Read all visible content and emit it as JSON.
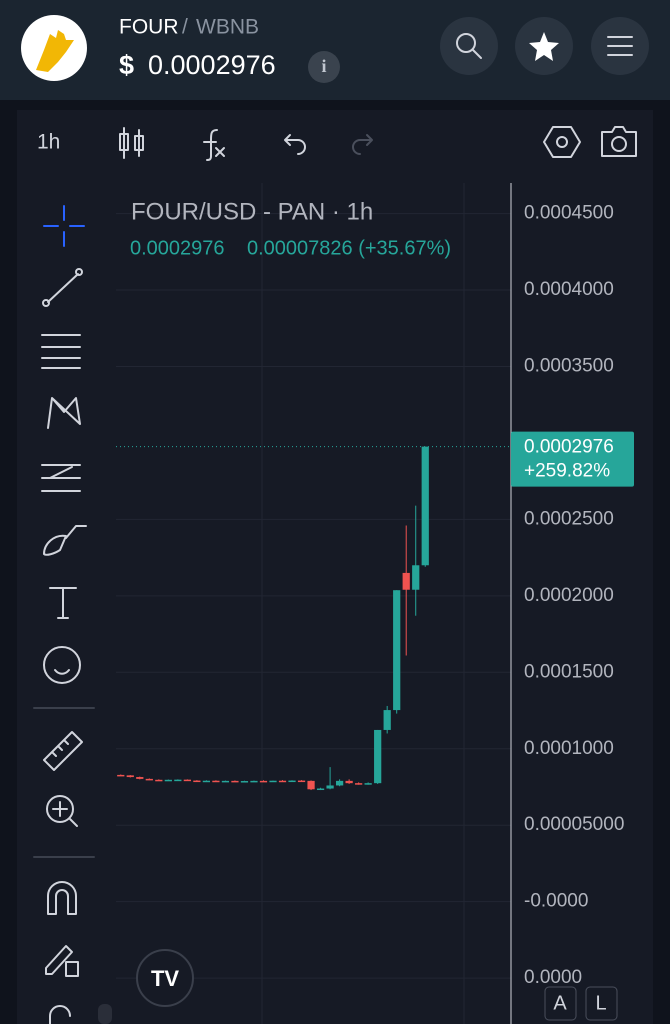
{
  "header": {
    "base": "FOUR",
    "separator": "/",
    "quote": "WBNB",
    "currency": "$",
    "price": "0.0002976"
  },
  "toolbar": {
    "interval": "1h"
  },
  "chart": {
    "type": "candlestick",
    "title": "FOUR/USD - PAN · 1h",
    "legend_price": "0.0002976",
    "legend_change": "0.00007826 (+35.67%)",
    "last_price_label": "0.0002976",
    "last_change_label": "+259.82%",
    "ylim": [
      -8e-05,
      0.00047
    ],
    "yticks": [
      {
        "value": 0.00045,
        "label": "0.0004500"
      },
      {
        "value": 0.0004,
        "label": "0.0004000"
      },
      {
        "value": 0.00035,
        "label": "0.0003500"
      },
      {
        "value": 0.00025,
        "label": "0.0002500"
      },
      {
        "value": 0.0002,
        "label": "0.0002000"
      },
      {
        "value": 0.00015,
        "label": "0.0001500"
      },
      {
        "value": 0.0001,
        "label": "0.0001000"
      },
      {
        "value": 5e-05,
        "label": "0.00005000"
      },
      {
        "value": 0,
        "label": "-0.0000"
      },
      {
        "value": -5e-05,
        "label": "0.0000"
      }
    ],
    "up_color": "#26a69a",
    "down_color": "#ef5350",
    "candles": [
      {
        "open": 8.29e-05,
        "high": 8.32e-05,
        "low": 8.22e-05,
        "close": 8.26e-05
      },
      {
        "open": 8.26e-05,
        "high": 8.28e-05,
        "low": 8.12e-05,
        "close": 8.15e-05
      },
      {
        "open": 8.15e-05,
        "high": 8.18e-05,
        "low": 8e-05,
        "close": 8.03e-05
      },
      {
        "open": 8.03e-05,
        "high": 8.06e-05,
        "low": 7.95e-05,
        "close": 7.97e-05
      },
      {
        "open": 7.97e-05,
        "high": 8e-05,
        "low": 7.92e-05,
        "close": 7.96e-05
      },
      {
        "open": 7.96e-05,
        "high": 7.99e-05,
        "low": 7.93e-05,
        "close": 7.97e-05
      },
      {
        "open": 7.97e-05,
        "high": 8e-05,
        "low": 7.94e-05,
        "close": 7.98e-05
      },
      {
        "open": 7.98e-05,
        "high": 8e-05,
        "low": 7.9e-05,
        "close": 7.92e-05
      },
      {
        "open": 7.92e-05,
        "high": 7.95e-05,
        "low": 7.89e-05,
        "close": 7.9e-05
      },
      {
        "open": 7.9e-05,
        "high": 7.94e-05,
        "low": 7.87e-05,
        "close": 7.91e-05
      },
      {
        "open": 7.91e-05,
        "high": 7.94e-05,
        "low": 7.88e-05,
        "close": 7.89e-05
      },
      {
        "open": 7.89e-05,
        "high": 7.92e-05,
        "low": 7.86e-05,
        "close": 7.9e-05
      },
      {
        "open": 7.9e-05,
        "high": 7.93e-05,
        "low": 7.87e-05,
        "close": 7.88e-05
      },
      {
        "open": 7.88e-05,
        "high": 7.91e-05,
        "low": 7.85e-05,
        "close": 7.89e-05
      },
      {
        "open": 7.89e-05,
        "high": 7.92e-05,
        "low": 7.86e-05,
        "close": 7.9e-05
      },
      {
        "open": 7.9e-05,
        "high": 7.94e-05,
        "low": 7.87e-05,
        "close": 7.88e-05
      },
      {
        "open": 7.88e-05,
        "high": 7.92e-05,
        "low": 7.85e-05,
        "close": 7.91e-05
      },
      {
        "open": 7.91e-05,
        "high": 7.95e-05,
        "low": 7.88e-05,
        "close": 7.9e-05
      },
      {
        "open": 7.9e-05,
        "high": 7.94e-05,
        "low": 7.87e-05,
        "close": 7.92e-05
      },
      {
        "open": 7.92e-05,
        "high": 7.95e-05,
        "low": 7.88e-05,
        "close": 7.9e-05
      },
      {
        "open": 7.9e-05,
        "high": 7.93e-05,
        "low": 7.3e-05,
        "close": 7.35e-05
      },
      {
        "open": 7.35e-05,
        "high": 7.45e-05,
        "low": 7.3e-05,
        "close": 7.4e-05
      },
      {
        "open": 7.4e-05,
        "high": 8.8e-05,
        "low": 7.35e-05,
        "close": 7.6e-05
      },
      {
        "open": 7.6e-05,
        "high": 8e-05,
        "low": 7.55e-05,
        "close": 7.9e-05
      },
      {
        "open": 7.9e-05,
        "high": 8e-05,
        "low": 7.7e-05,
        "close": 7.75e-05
      },
      {
        "open": 7.75e-05,
        "high": 7.8e-05,
        "low": 7.65e-05,
        "close": 7.7e-05
      },
      {
        "open": 7.7e-05,
        "high": 7.8e-05,
        "low": 7.65e-05,
        "close": 7.75e-05
      },
      {
        "open": 7.75e-05,
        "high": 0.0001123,
        "low": 7.7e-05,
        "close": 0.0001123
      },
      {
        "open": 0.0001123,
        "high": 0.000128,
        "low": 0.00011,
        "close": 0.0001253
      },
      {
        "open": 0.0001253,
        "high": 0.0002037,
        "low": 0.000123,
        "close": 0.0002037
      },
      {
        "open": 0.000215,
        "high": 0.000246,
        "low": 0.000161,
        "close": 0.000204
      },
      {
        "open": 0.000204,
        "high": 0.000259,
        "low": 0.000187,
        "close": 0.00022
      },
      {
        "open": 0.00022,
        "high": 0.0002976,
        "low": 0.000219,
        "close": 0.0002976
      }
    ]
  },
  "footer": {
    "auto": "A",
    "log": "L"
  }
}
